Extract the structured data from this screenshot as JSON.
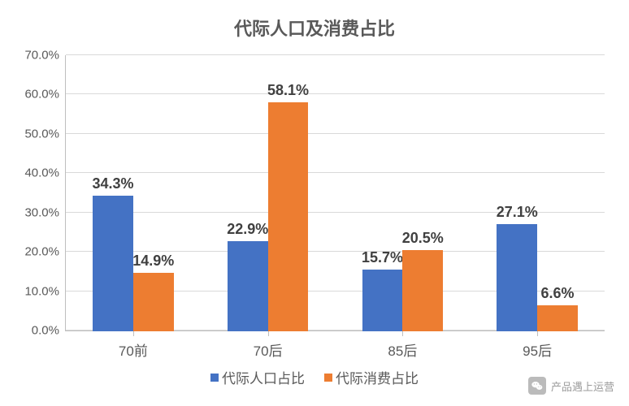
{
  "chart": {
    "type": "bar",
    "title": "代际人口及消费占比",
    "title_fontsize": 22,
    "title_color": "#595959",
    "background_color": "#ffffff",
    "grid_color": "#d9d9d9",
    "axis_color": "#bfbfbf",
    "tick_label_color": "#595959",
    "tick_fontsize": 15,
    "data_label_fontsize": 18,
    "data_label_color": "#404040",
    "x_label_fontsize": 17,
    "legend_fontsize": 17,
    "ylim": [
      0,
      70
    ],
    "ytick_step": 10,
    "ytick_format_suffix": ".0%",
    "bar_width_pct": 30,
    "categories": [
      "70前",
      "70后",
      "85后",
      "95后"
    ],
    "series": [
      {
        "name": "代际人口占比",
        "color": "#4472c4",
        "values": [
          34.3,
          22.9,
          15.7,
          27.1
        ],
        "labels": [
          "34.3%",
          "22.9%",
          "15.7%",
          "27.1%"
        ]
      },
      {
        "name": "代际消费占比",
        "color": "#ed7d31",
        "values": [
          14.9,
          58.1,
          20.5,
          6.6
        ],
        "labels": [
          "14.9%",
          "58.1%",
          "20.5%",
          "6.6%"
        ]
      }
    ]
  },
  "watermark": {
    "text": "产品遇上运营",
    "fontsize": 13,
    "color": "#8a8a8a",
    "icon_bg": "#b0b0b0",
    "icon_glyph_color": "#ffffff"
  }
}
